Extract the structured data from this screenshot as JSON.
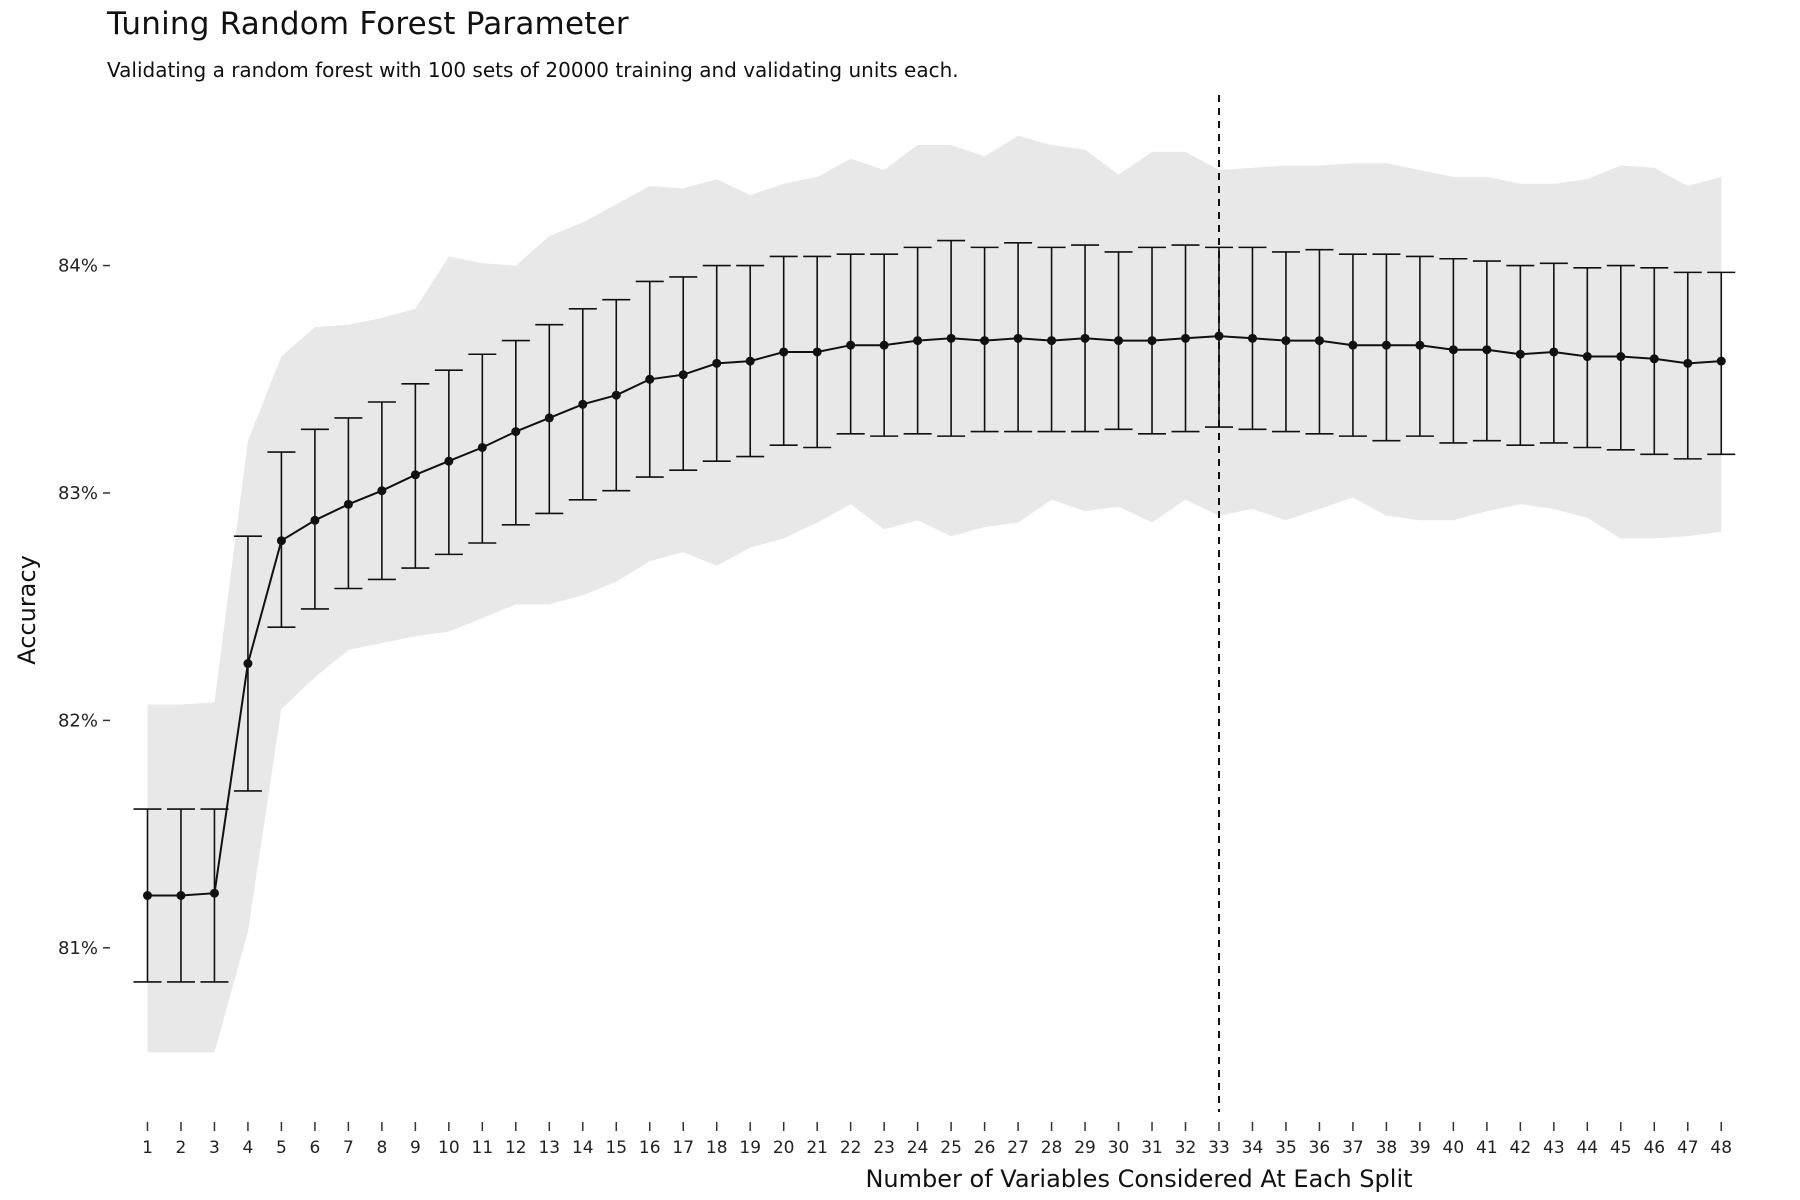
{
  "chart_data": {
    "type": "line",
    "title": "Tuning Random Forest Parameter",
    "subtitle": "Validating a random forest with 100 sets of 20000 training and validating units each.",
    "xlabel": "Number of Variables Considered At Each Split",
    "ylabel": "Accuracy",
    "xlim": [
      0.0,
      48.5
    ],
    "ylim": [
      80.3,
      84.75
    ],
    "yticks": [
      81,
      82,
      83,
      84
    ],
    "ytick_labels": [
      "81%",
      "82%",
      "83%",
      "84%"
    ],
    "x": [
      1,
      2,
      3,
      4,
      5,
      6,
      7,
      8,
      9,
      10,
      11,
      12,
      13,
      14,
      15,
      16,
      17,
      18,
      19,
      20,
      21,
      22,
      23,
      24,
      25,
      26,
      27,
      28,
      29,
      30,
      31,
      32,
      33,
      34,
      35,
      36,
      37,
      38,
      39,
      40,
      41,
      42,
      43,
      44,
      45,
      46,
      47,
      48
    ],
    "grid": false,
    "selected_x": 33,
    "series": [
      {
        "values": [
          81.23,
          81.23,
          81.24,
          82.25,
          82.79,
          82.88,
          82.95,
          83.01,
          83.08,
          83.14,
          83.2,
          83.27,
          83.33,
          83.39,
          83.43,
          83.5,
          83.52,
          83.57,
          83.58,
          83.62,
          83.62,
          83.65,
          83.65,
          83.67,
          83.68,
          83.67,
          83.68,
          83.67,
          83.68,
          83.67,
          83.67,
          83.68,
          83.69,
          83.68,
          83.67,
          83.67,
          83.65,
          83.65,
          83.65,
          83.63,
          83.63,
          83.61,
          83.62,
          83.6,
          83.6,
          83.59,
          83.57,
          83.58
        ],
        "error_low": [
          80.85,
          80.85,
          80.85,
          81.69,
          82.41,
          82.49,
          82.58,
          82.62,
          82.67,
          82.73,
          82.78,
          82.86,
          82.91,
          82.97,
          83.01,
          83.07,
          83.1,
          83.14,
          83.16,
          83.21,
          83.2,
          83.26,
          83.25,
          83.26,
          83.25,
          83.27,
          83.27,
          83.27,
          83.27,
          83.28,
          83.26,
          83.27,
          83.29,
          83.28,
          83.27,
          83.26,
          83.25,
          83.23,
          83.25,
          83.22,
          83.23,
          83.21,
          83.22,
          83.2,
          83.19,
          83.17,
          83.15,
          83.17
        ],
        "error_high": [
          81.61,
          81.61,
          81.61,
          82.81,
          83.18,
          83.28,
          83.33,
          83.4,
          83.48,
          83.54,
          83.61,
          83.67,
          83.74,
          83.81,
          83.85,
          83.93,
          83.95,
          84.0,
          84.0,
          84.04,
          84.04,
          84.05,
          84.05,
          84.08,
          84.11,
          84.08,
          84.1,
          84.08,
          84.09,
          84.06,
          84.08,
          84.09,
          84.08,
          84.08,
          84.06,
          84.07,
          84.05,
          84.05,
          84.04,
          84.03,
          84.02,
          84.0,
          84.01,
          83.99,
          84.0,
          83.99,
          83.97,
          83.97
        ],
        "band_low": [
          80.54,
          80.54,
          80.54,
          81.07,
          82.05,
          82.19,
          82.31,
          82.34,
          82.37,
          82.39,
          82.45,
          82.51,
          82.51,
          82.55,
          82.61,
          82.7,
          82.74,
          82.68,
          82.76,
          82.8,
          82.87,
          82.95,
          82.84,
          82.88,
          82.81,
          82.85,
          82.87,
          82.97,
          82.92,
          82.94,
          82.87,
          82.97,
          82.9,
          82.93,
          82.88,
          82.93,
          82.98,
          82.9,
          82.88,
          82.88,
          82.92,
          82.95,
          82.93,
          82.89,
          82.8,
          82.8,
          82.81,
          82.83
        ],
        "band_high": [
          82.07,
          82.07,
          82.08,
          83.23,
          83.6,
          83.73,
          83.74,
          83.77,
          83.81,
          84.04,
          84.01,
          84.0,
          84.13,
          84.19,
          84.27,
          84.35,
          84.34,
          84.38,
          84.31,
          84.36,
          84.39,
          84.47,
          84.42,
          84.53,
          84.53,
          84.48,
          84.57,
          84.53,
          84.51,
          84.4,
          84.5,
          84.5,
          84.42,
          84.43,
          84.44,
          84.44,
          84.45,
          84.45,
          84.42,
          84.39,
          84.39,
          84.36,
          84.36,
          84.38,
          84.44,
          84.43,
          84.35,
          84.39
        ]
      }
    ]
  }
}
